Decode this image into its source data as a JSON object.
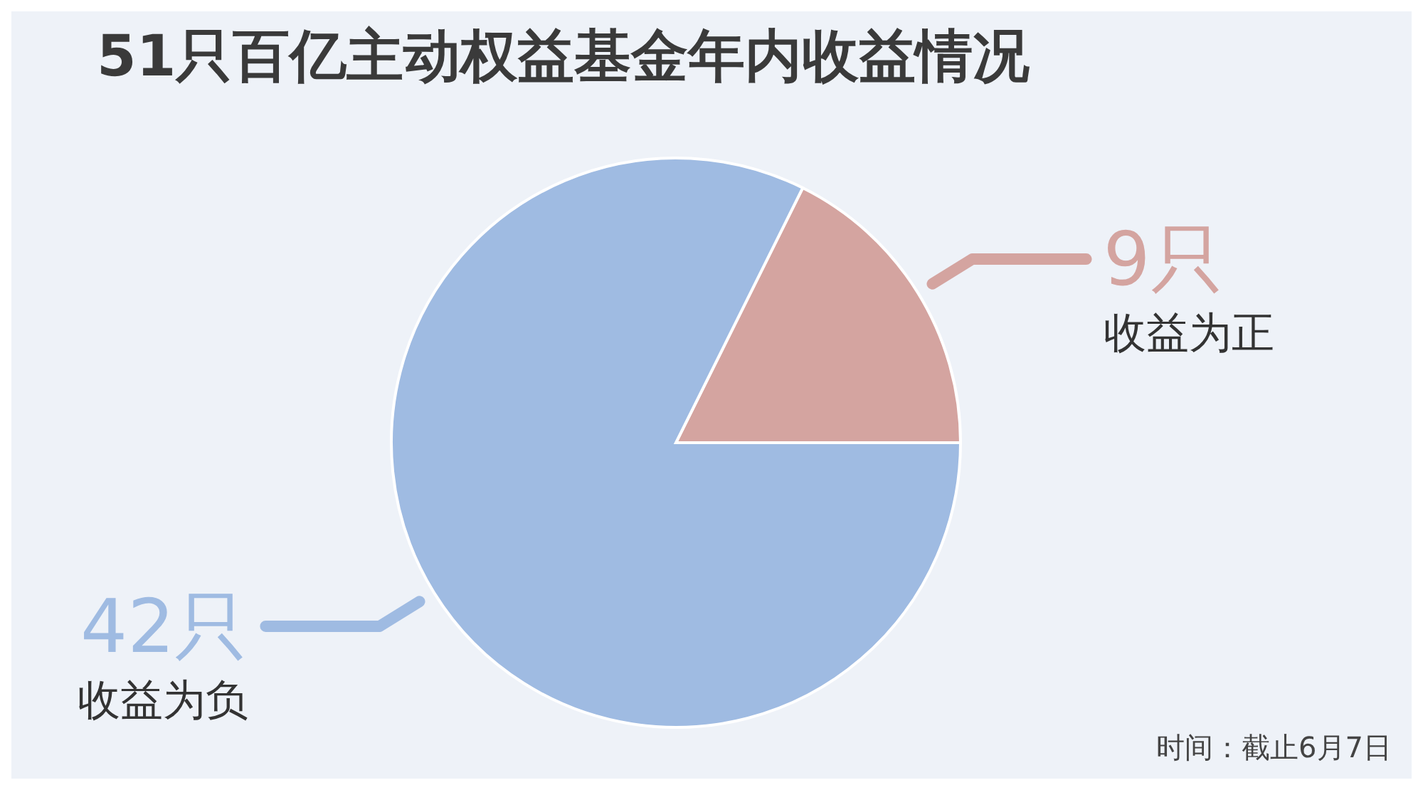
{
  "chart_data": {
    "type": "pie",
    "title": "51只百亿主动权益基金年内收益情况",
    "categories": [
      "收益为正",
      "收益为负"
    ],
    "values": [
      9,
      42
    ],
    "colors": [
      "#d4a4a0",
      "#9fbbe2"
    ],
    "value_labels": [
      "9只",
      "42只"
    ],
    "legend": false,
    "annotations": [
      "时间：截止6月7日"
    ]
  }
}
